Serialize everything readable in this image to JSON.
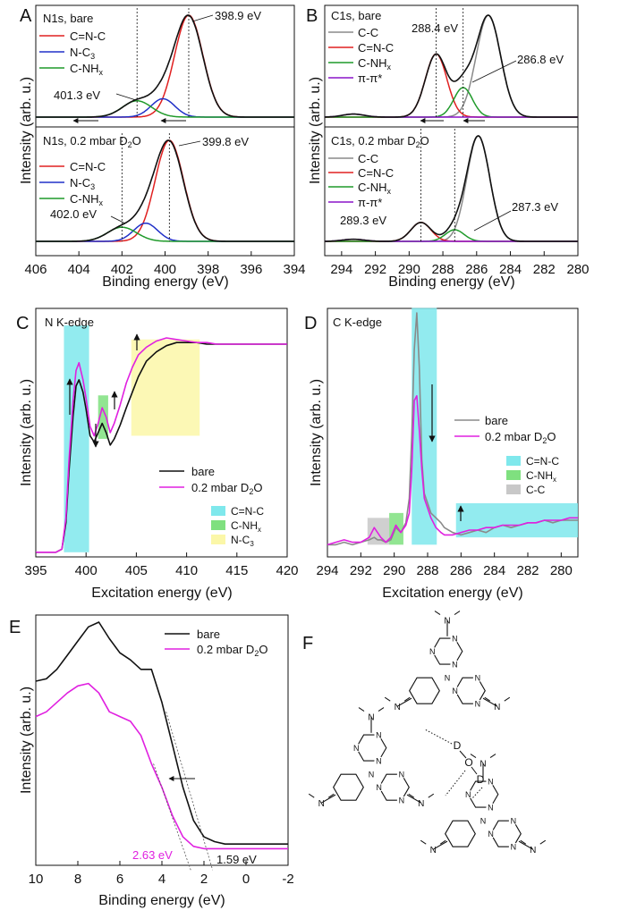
{
  "colors": {
    "black": "#111111",
    "red": "#e02020",
    "blue": "#2030c8",
    "green": "#1f9a2a",
    "purple": "#8a14c8",
    "gray": "#8a8a8a",
    "magenta": "#e020e0",
    "cyan": "#7fe8ec",
    "lightgreen": "#7fe07f",
    "yellow": "#fbf7a8",
    "lightgray": "#c8c8c8"
  },
  "chart_data": [
    {
      "panel": "A",
      "type": "line",
      "units_x": "eV",
      "xlabel": "Binding energy (eV)",
      "ylabel": "Intensity (arb. u.)",
      "xlim": [
        406,
        394
      ],
      "x_ticks": [
        "406",
        "404",
        "402",
        "400",
        "398",
        "396",
        "394"
      ],
      "subpanels": [
        {
          "label": "N1s, bare",
          "series": [
            {
              "name": "C=N-C",
              "color": "red",
              "center": 398.9,
              "fwhm": 1.55,
              "height": 1.0
            },
            {
              "name": "N-C3",
              "color": "blue",
              "center": 400.1,
              "fwhm": 1.3,
              "height": 0.18
            },
            {
              "name": "C-NHx",
              "color": "green",
              "center": 401.3,
              "fwhm": 1.6,
              "height": 0.16
            }
          ],
          "annotations": [
            {
              "text": "398.9 eV",
              "x": 398.9
            },
            {
              "text": "401.3 eV",
              "x": 401.3
            }
          ],
          "dashed_lines": [
            401.3,
            398.9
          ]
        },
        {
          "label": "N1s, 0.2 mbar D2O",
          "series": [
            {
              "name": "C=N-C",
              "color": "red",
              "center": 399.8,
              "fwhm": 1.55,
              "height": 1.0
            },
            {
              "name": "N-C3",
              "color": "blue",
              "center": 400.9,
              "fwhm": 1.3,
              "height": 0.18
            },
            {
              "name": "C-NHx",
              "color": "green",
              "center": 402.0,
              "fwhm": 1.6,
              "height": 0.14
            }
          ],
          "annotations": [
            {
              "text": "399.8 eV",
              "x": 399.8
            },
            {
              "text": "402.0 eV",
              "x": 402.0
            }
          ],
          "dashed_lines": [
            402.0,
            399.8
          ]
        }
      ]
    },
    {
      "panel": "B",
      "type": "line",
      "xlabel": "Binding energy (eV)",
      "ylabel": "Intensity (arb. u.)",
      "xlim": [
        295,
        280
      ],
      "x_ticks": [
        "294",
        "292",
        "290",
        "288",
        "286",
        "284",
        "282",
        "280"
      ],
      "subpanels": [
        {
          "label": "C1s, bare",
          "series": [
            {
              "name": "C-C",
              "color": "gray",
              "center": 285.3,
              "fwhm": 1.7,
              "height": 1.0
            },
            {
              "name": "C=N-C",
              "color": "red",
              "center": 288.4,
              "fwhm": 1.5,
              "height": 0.62
            },
            {
              "name": "C-NHx",
              "color": "green",
              "center": 286.8,
              "fwhm": 1.3,
              "height": 0.29
            },
            {
              "name": "π-π*",
              "color": "purple",
              "center": 293.3,
              "fwhm": 1.5,
              "height": 0.03
            }
          ],
          "annotations": [
            {
              "text": "288.4 eV",
              "x": 288.4
            },
            {
              "text": "286.8 eV",
              "x": 286.8
            }
          ],
          "dashed_lines": [
            288.4,
            286.8
          ]
        },
        {
          "label": "C1s, 0.2 mbar D2O",
          "series": [
            {
              "name": "C-C",
              "color": "gray",
              "center": 285.9,
              "fwhm": 1.6,
              "height": 1.0
            },
            {
              "name": "C=N-C",
              "color": "red",
              "center": 289.3,
              "fwhm": 1.4,
              "height": 0.18
            },
            {
              "name": "C-NHx",
              "color": "green",
              "center": 287.3,
              "fwhm": 1.3,
              "height": 0.11
            },
            {
              "name": "π-π*",
              "color": "purple",
              "center": 293.3,
              "fwhm": 1.5,
              "height": 0.02
            }
          ],
          "annotations": [
            {
              "text": "289.3 eV",
              "x": 289.3
            },
            {
              "text": "287.3 eV",
              "x": 287.3
            }
          ],
          "dashed_lines": [
            289.3,
            287.3
          ]
        }
      ]
    },
    {
      "panel": "C",
      "type": "line",
      "title": "N K-edge",
      "xlabel": "Excitation energy (eV)",
      "ylabel": "Intensity (arb. u.)",
      "xlim": [
        395,
        420
      ],
      "ylim": [
        0,
        1.6
      ],
      "x_ticks": [
        "395",
        "400",
        "405",
        "410",
        "415",
        "420"
      ],
      "series": [
        {
          "name": "bare",
          "color": "black",
          "x": [
            395,
            397,
            397.6,
            398.0,
            398.3,
            398.7,
            399.0,
            399.3,
            399.7,
            400.0,
            400.4,
            400.8,
            401.2,
            401.6,
            402.0,
            402.4,
            402.8,
            403.4,
            404,
            404.6,
            405.2,
            406,
            407,
            408,
            409,
            410,
            411,
            412,
            413,
            414,
            415,
            416,
            417,
            418,
            419,
            420
          ],
          "y": [
            0.03,
            0.03,
            0.05,
            0.22,
            0.55,
            0.9,
            1.1,
            1.14,
            1.06,
            0.95,
            0.78,
            0.74,
            0.8,
            0.86,
            0.8,
            0.72,
            0.76,
            0.85,
            0.96,
            1.06,
            1.16,
            1.26,
            1.32,
            1.36,
            1.38,
            1.38,
            1.38,
            1.37,
            1.37,
            1.37,
            1.37,
            1.37,
            1.37,
            1.37,
            1.37,
            1.37
          ]
        },
        {
          "name": "0.2 mbar D2O",
          "color": "magenta",
          "x": [
            395,
            397,
            397.6,
            398.0,
            398.3,
            398.7,
            399.0,
            399.3,
            399.7,
            400.0,
            400.4,
            400.8,
            401.2,
            401.6,
            402.0,
            402.4,
            402.8,
            403.4,
            404,
            404.6,
            405.2,
            406,
            407,
            408,
            409,
            410,
            411,
            412,
            413,
            414,
            415,
            416,
            417,
            418,
            419,
            420
          ],
          "y": [
            0.03,
            0.03,
            0.05,
            0.25,
            0.62,
            1.0,
            1.2,
            1.25,
            1.14,
            1.02,
            0.84,
            0.78,
            0.86,
            0.96,
            0.9,
            0.8,
            0.86,
            0.98,
            1.12,
            1.22,
            1.3,
            1.35,
            1.39,
            1.41,
            1.4,
            1.39,
            1.38,
            1.38,
            1.37,
            1.37,
            1.37,
            1.37,
            1.37,
            1.37,
            1.37,
            1.37
          ]
        }
      ],
      "highlights": [
        {
          "name": "C=N-C",
          "color": "cyan",
          "x0": 397.8,
          "x1": 400.3,
          "y0": 0.03,
          "y1": 1.49
        },
        {
          "name": "C-NHx",
          "color": "lightgreen",
          "x0": 401.2,
          "x1": 402.2,
          "y0": 0.76,
          "y1": 1.04
        },
        {
          "name": "N-C3",
          "color": "yellow",
          "x0": 404.5,
          "x1": 411.3,
          "y0": 0.78,
          "y1": 1.4
        }
      ],
      "legend_lines": [
        "bare",
        "0.2 mbar D2O"
      ],
      "legend_boxes": [
        "C=N-C",
        "C-NHx",
        "N-C3"
      ]
    },
    {
      "panel": "D",
      "type": "line",
      "title": "C K-edge",
      "xlabel": "Excitation energy (eV)",
      "ylabel": "Intensity (arb. u.)",
      "xlim": [
        294,
        279
      ],
      "ylim": [
        0,
        1.0
      ],
      "x_ticks": [
        "294",
        "292",
        "290",
        "288",
        "286",
        "284",
        "282",
        "280"
      ],
      "series": [
        {
          "name": "bare",
          "color": "gray",
          "x": [
            294,
            293.5,
            293,
            292.5,
            292,
            291.5,
            291.2,
            291.0,
            290.8,
            290.5,
            290.2,
            289.9,
            289.6,
            289.3,
            289.1,
            288.95,
            288.8,
            288.65,
            288.5,
            288.35,
            288.2,
            288.0,
            287.8,
            287.5,
            287.2,
            287,
            286.5,
            286,
            285.5,
            285,
            284.5,
            284,
            283.5,
            283,
            282.5,
            282,
            281.5,
            281,
            280.5,
            280,
            279.5,
            279
          ],
          "y": [
            0.05,
            0.05,
            0.06,
            0.05,
            0.06,
            0.07,
            0.08,
            0.07,
            0.07,
            0.06,
            0.07,
            0.12,
            0.1,
            0.14,
            0.24,
            0.5,
            0.85,
            1.0,
            0.78,
            0.4,
            0.26,
            0.22,
            0.18,
            0.16,
            0.14,
            0.12,
            0.1,
            0.09,
            0.1,
            0.11,
            0.1,
            0.12,
            0.13,
            0.12,
            0.13,
            0.14,
            0.14,
            0.15,
            0.14,
            0.15,
            0.15,
            0.15
          ]
        },
        {
          "name": "0.2 mbar D2O",
          "color": "magenta",
          "x": [
            294,
            293.5,
            293,
            292.5,
            292,
            291.5,
            291.2,
            291.0,
            290.8,
            290.5,
            290.2,
            289.9,
            289.6,
            289.3,
            289.1,
            288.95,
            288.8,
            288.65,
            288.5,
            288.35,
            288.2,
            288.0,
            287.8,
            287.5,
            287.2,
            287,
            286.5,
            286,
            285.5,
            285,
            284.5,
            284,
            283.5,
            283,
            282.5,
            282,
            281.5,
            281,
            280.5,
            280,
            279.5,
            279
          ],
          "y": [
            0.05,
            0.06,
            0.07,
            0.06,
            0.06,
            0.08,
            0.12,
            0.1,
            0.08,
            0.06,
            0.08,
            0.13,
            0.1,
            0.13,
            0.18,
            0.36,
            0.64,
            0.66,
            0.52,
            0.36,
            0.24,
            0.2,
            0.16,
            0.12,
            0.1,
            0.09,
            0.09,
            0.1,
            0.11,
            0.11,
            0.12,
            0.12,
            0.13,
            0.13,
            0.13,
            0.14,
            0.14,
            0.15,
            0.15,
            0.15,
            0.16,
            0.16
          ]
        }
      ],
      "highlights": [
        {
          "name": "C=N-C",
          "color": "cyan",
          "x0": 288.95,
          "x1": 287.45,
          "y0": 0.05,
          "y1": 1.02
        },
        {
          "name": "C-NHx",
          "color": "lightgreen",
          "x0": 290.3,
          "x1": 289.45,
          "y0": 0.05,
          "y1": 0.18
        },
        {
          "name": "C-C",
          "color": "lightgray",
          "x0": 291.6,
          "x1": 290.3,
          "y0": 0.05,
          "y1": 0.16
        },
        {
          "name": "C=N-C",
          "color": "cyan",
          "x0": 286.3,
          "x1": 279,
          "y0": 0.08,
          "y1": 0.22
        }
      ],
      "legend_lines": [
        "bare",
        "0.2 mbar D2O"
      ],
      "legend_boxes": [
        "C=N-C",
        "C-NHx",
        "C-C"
      ]
    },
    {
      "panel": "E",
      "type": "line",
      "xlabel": "Binding energy (eV)",
      "ylabel": "Intensity (arb. u.)",
      "xlim": [
        10,
        -2
      ],
      "ylim": [
        0,
        1.0
      ],
      "x_ticks": [
        "10",
        "8",
        "6",
        "4",
        "2",
        "0",
        "-2"
      ],
      "series": [
        {
          "name": "bare",
          "color": "black",
          "x": [
            10,
            9.5,
            9,
            8.5,
            8,
            7.5,
            7,
            6.5,
            6,
            5.5,
            5,
            4.5,
            4,
            3.5,
            3,
            2.5,
            2,
            1.5,
            1,
            0.5,
            0,
            -0.5,
            -1,
            -1.5,
            -2
          ],
          "y": [
            0.75,
            0.76,
            0.8,
            0.86,
            0.92,
            0.98,
            1.0,
            0.93,
            0.87,
            0.84,
            0.8,
            0.8,
            0.66,
            0.48,
            0.3,
            0.16,
            0.09,
            0.07,
            0.06,
            0.06,
            0.06,
            0.06,
            0.06,
            0.06,
            0.06
          ]
        },
        {
          "name": "0.2 mbar D2O",
          "color": "magenta",
          "x": [
            10,
            9.5,
            9,
            8.5,
            8,
            7.5,
            7,
            6.5,
            6,
            5.5,
            5,
            4.5,
            4,
            3.5,
            3,
            2.5,
            2,
            1.5,
            1,
            0.5,
            0,
            -0.5,
            -1,
            -1.5,
            -2
          ],
          "y": [
            0.6,
            0.62,
            0.66,
            0.7,
            0.73,
            0.74,
            0.7,
            0.62,
            0.6,
            0.58,
            0.52,
            0.4,
            0.3,
            0.18,
            0.09,
            0.05,
            0.04,
            0.04,
            0.04,
            0.04,
            0.04,
            0.04,
            0.04,
            0.04,
            0.04
          ]
        }
      ],
      "annotations": [
        {
          "text": "2.63 eV",
          "x": 2.63,
          "color": "magenta"
        },
        {
          "text": "1.59 eV",
          "x": 1.59
        }
      ]
    }
  ],
  "panel_F": {
    "label": "F",
    "atoms": {
      "N": "N",
      "D": "D",
      "O": "O"
    }
  },
  "labels": {
    "A": "A",
    "B": "B",
    "C": "C",
    "D": "D",
    "E": "E",
    "F": "F",
    "a_top_title": "N1s, bare",
    "a_bot_title_pre": "N1s, 0.2 mbar D",
    "a_bot_title_sub": "2",
    "a_bot_title_post": "O",
    "b_top_title": "C1s, bare",
    "b_bot_title_pre": "C1s, 0.2 mbar D",
    "b_bot_title_sub": "2",
    "b_bot_title_post": "O",
    "leg_CNC": "C=N-C",
    "leg_NC3_pre": "N-C",
    "leg_NC3_sub": "3",
    "leg_CNH_pre": "C-NH",
    "leg_CNH_sub": "x",
    "leg_CC": "C-C",
    "leg_pipi": "π-π*",
    "leg_bare": "bare",
    "leg_d2o_pre": "0.2 mbar D",
    "leg_d2o_sub": "2",
    "leg_d2o_post": "O",
    "ann_A1": "398.9 eV",
    "ann_A2": "401.3 eV",
    "ann_A3": "399.8 eV",
    "ann_A4": "402.0 eV",
    "ann_B1": "288.4 eV",
    "ann_B2": "286.8 eV",
    "ann_B3": "289.3 eV",
    "ann_B4": "287.3 eV",
    "ann_E1": "2.63 eV",
    "ann_E2": "1.59 eV",
    "c_title": "N K-edge",
    "d_title": "C K-edge",
    "xlabel_be": "Binding energy (eV)",
    "xlabel_ex": "Excitation energy (eV)",
    "ylabel": "Intensity (arb. u.)",
    "ticks_A": [
      "406",
      "404",
      "402",
      "400",
      "398",
      "396",
      "394"
    ],
    "ticks_B": [
      "294",
      "292",
      "290",
      "288",
      "286",
      "284",
      "282",
      "280"
    ],
    "ticks_C": [
      "395",
      "400",
      "405",
      "410",
      "415",
      "420"
    ],
    "ticks_D": [
      "294",
      "292",
      "290",
      "288",
      "286",
      "284",
      "282",
      "280"
    ],
    "ticks_E": [
      "10",
      "8",
      "6",
      "4",
      "2",
      "0",
      "-2"
    ]
  }
}
